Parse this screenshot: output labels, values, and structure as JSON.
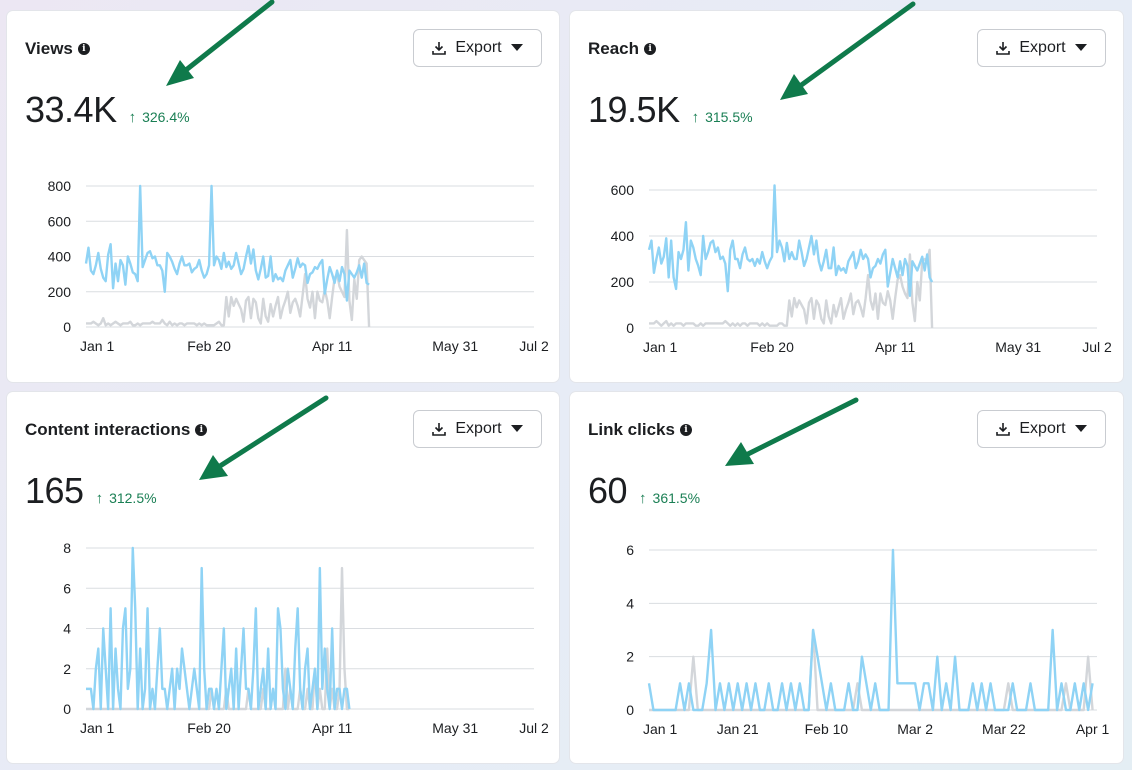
{
  "colors": {
    "current_series": "#8fd3f5",
    "previous_series": "#d3d6da",
    "gridline": "#dadde1",
    "change_up": "#1a7f54",
    "annotation_arrow": "#0f7a4b"
  },
  "icons": {
    "info": "info-icon",
    "export": "download-icon",
    "dropdown": "caret-down-icon",
    "change": "arrow-up-icon"
  },
  "cards": [
    {
      "title": "Views",
      "value": "33.4K",
      "change": "326.4%",
      "export_label": "Export"
    },
    {
      "title": "Reach",
      "value": "19.5K",
      "change": "315.5%",
      "export_label": "Export"
    },
    {
      "title": "Content interactions",
      "value": "165",
      "change": "312.5%",
      "export_label": "Export"
    },
    {
      "title": "Link clicks",
      "value": "60",
      "change": "361.5%",
      "export_label": "Export"
    }
  ],
  "chart_data": [
    {
      "type": "line",
      "title": "Views",
      "xlabel": "",
      "ylabel": "",
      "x_tick_labels": [
        "Jan 1",
        "Feb 20",
        "Apr 11",
        "May 31",
        "Jul 2"
      ],
      "x_tick_days": [
        0,
        50,
        100,
        150,
        182
      ],
      "xlim": [
        0,
        182
      ],
      "y_ticks": [
        0,
        200,
        400,
        600,
        800
      ],
      "ylim": [
        0,
        800
      ],
      "grid": true,
      "legend": "none",
      "series": [
        {
          "role": "current",
          "color": "#8fd3f5",
          "values": [
            360,
            450,
            320,
            300,
            350,
            420,
            330,
            280,
            260,
            410,
            470,
            220,
            360,
            260,
            380,
            350,
            240,
            400,
            360,
            310,
            300,
            260,
            800,
            340,
            380,
            420,
            430,
            390,
            400,
            350,
            350,
            320,
            200,
            420,
            400,
            370,
            330,
            300,
            360,
            400,
            350,
            350,
            360,
            310,
            330,
            340,
            380,
            320,
            280,
            300,
            350,
            800,
            350,
            400,
            380,
            330,
            420,
            340,
            370,
            330,
            350,
            420,
            360,
            300,
            330,
            400,
            460,
            360,
            440,
            320,
            270,
            330,
            400,
            280,
            290,
            400,
            260,
            300,
            270,
            280,
            260,
            320,
            350,
            380,
            280,
            330,
            390,
            340,
            360,
            350,
            250,
            300,
            310,
            340,
            330,
            360,
            380,
            190,
            270,
            340,
            300,
            250,
            320,
            260,
            340,
            300,
            150,
            320,
            300,
            280,
            310,
            350,
            280,
            360,
            250,
            240
          ]
        },
        {
          "role": "previous",
          "color": "#d3d6da",
          "values": [
            20,
            20,
            20,
            30,
            20,
            10,
            20,
            50,
            10,
            20,
            10,
            20,
            30,
            20,
            10,
            20,
            20,
            20,
            30,
            10,
            10,
            20,
            10,
            20,
            20,
            20,
            20,
            30,
            20,
            20,
            20,
            40,
            20,
            10,
            30,
            10,
            20,
            10,
            20,
            20,
            10,
            20,
            20,
            20,
            20,
            10,
            20,
            10,
            20,
            10,
            10,
            10,
            10,
            20,
            30,
            10,
            10,
            170,
            60,
            170,
            120,
            160,
            130,
            100,
            30,
            150,
            170,
            50,
            160,
            140,
            50,
            20,
            160,
            60,
            30,
            130,
            60,
            120,
            170,
            50,
            110,
            150,
            200,
            80,
            140,
            160,
            120,
            60,
            180,
            300,
            160,
            110,
            200,
            50,
            200,
            150,
            140,
            210,
            150,
            50,
            170,
            280,
            300,
            230,
            200,
            170,
            550,
            150,
            40,
            270,
            160,
            380,
            400,
            380,
            360,
            0
          ]
        }
      ]
    },
    {
      "type": "line",
      "title": "Reach",
      "xlabel": "",
      "ylabel": "",
      "x_tick_labels": [
        "Jan 1",
        "Feb 20",
        "Apr 11",
        "May 31",
        "Jul 2"
      ],
      "x_tick_days": [
        0,
        50,
        100,
        150,
        182
      ],
      "xlim": [
        0,
        182
      ],
      "y_ticks": [
        0,
        200,
        400,
        600
      ],
      "ylim": [
        0,
        600
      ],
      "grid": true,
      "legend": "none",
      "series": [
        {
          "role": "current",
          "color": "#8fd3f5",
          "values": [
            340,
            380,
            240,
            300,
            350,
            280,
            310,
            390,
            220,
            380,
            220,
            170,
            330,
            300,
            340,
            460,
            250,
            380,
            350,
            300,
            270,
            230,
            400,
            300,
            330,
            370,
            380,
            330,
            350,
            300,
            310,
            280,
            160,
            340,
            380,
            300,
            300,
            260,
            320,
            350,
            300,
            290,
            300,
            270,
            300,
            280,
            330,
            290,
            260,
            290,
            310,
            620,
            330,
            380,
            350,
            290,
            370,
            300,
            330,
            300,
            300,
            380,
            330,
            270,
            300,
            350,
            400,
            320,
            380,
            290,
            250,
            290,
            340,
            260,
            260,
            350,
            230,
            270,
            250,
            260,
            240,
            290,
            310,
            330,
            260,
            290,
            340,
            300,
            320,
            300,
            220,
            260,
            270,
            300,
            280,
            320,
            340,
            180,
            240,
            300,
            260,
            220,
            290,
            230,
            300,
            270,
            140,
            290,
            270,
            250,
            280,
            310,
            250,
            320,
            220,
            200
          ]
        },
        {
          "role": "previous",
          "color": "#d3d6da",
          "values": [
            20,
            20,
            20,
            30,
            20,
            10,
            20,
            30,
            10,
            20,
            10,
            20,
            20,
            20,
            10,
            20,
            20,
            20,
            20,
            10,
            10,
            20,
            10,
            20,
            20,
            20,
            20,
            20,
            20,
            20,
            20,
            30,
            20,
            10,
            20,
            10,
            20,
            10,
            20,
            20,
            10,
            20,
            20,
            20,
            20,
            10,
            20,
            10,
            20,
            10,
            10,
            10,
            10,
            20,
            20,
            10,
            10,
            120,
            50,
            130,
            90,
            120,
            100,
            80,
            20,
            110,
            130,
            40,
            120,
            100,
            40,
            20,
            120,
            50,
            20,
            100,
            50,
            90,
            130,
            40,
            80,
            110,
            150,
            60,
            110,
            120,
            90,
            50,
            130,
            230,
            120,
            80,
            150,
            40,
            150,
            110,
            100,
            160,
            120,
            40,
            130,
            210,
            230,
            180,
            150,
            130,
            320,
            110,
            30,
            200,
            120,
            290,
            300,
            290,
            340,
            0
          ]
        }
      ]
    },
    {
      "type": "line",
      "title": "Content interactions",
      "xlabel": "",
      "ylabel": "",
      "x_tick_labels": [
        "Jan 1",
        "Feb 20",
        "Apr 11",
        "May 31",
        "Jul 2"
      ],
      "x_tick_days": [
        0,
        50,
        100,
        150,
        182
      ],
      "xlim": [
        0,
        182
      ],
      "y_ticks": [
        0,
        2,
        4,
        6,
        8
      ],
      "ylim": [
        0,
        8
      ],
      "grid": true,
      "legend": "none",
      "series": [
        {
          "role": "current",
          "color": "#8fd3f5",
          "values": [
            1,
            1,
            1,
            0,
            2,
            3,
            0,
            4,
            2,
            0,
            5,
            0,
            3,
            1,
            0,
            4,
            5,
            1,
            2,
            8,
            5,
            0,
            3,
            0,
            1,
            5,
            0,
            1,
            0,
            2,
            4,
            1,
            1,
            0,
            1,
            2,
            0,
            2,
            1,
            3,
            2,
            1,
            0,
            1,
            2,
            1,
            0,
            7,
            2,
            0,
            1,
            1,
            0,
            1,
            0,
            2,
            4,
            0,
            1,
            2,
            0,
            3,
            0,
            2,
            4,
            1,
            1,
            0,
            2,
            5,
            0,
            1,
            2,
            0,
            3,
            0,
            1,
            0,
            5,
            4,
            1,
            0,
            2,
            1,
            0,
            3,
            5,
            1,
            0,
            2,
            3,
            0,
            1,
            2,
            0,
            7,
            1,
            3,
            1,
            0,
            4,
            0,
            1,
            1,
            0,
            1,
            1,
            0
          ]
        },
        {
          "role": "previous",
          "color": "#d3d6da",
          "values": [
            0,
            0,
            0,
            0,
            0,
            0,
            0,
            0,
            0,
            0,
            0,
            0,
            0,
            0,
            0,
            0,
            0,
            0,
            0,
            0,
            0,
            0,
            0,
            0,
            0,
            0,
            0,
            0,
            0,
            0,
            0,
            0,
            0,
            0,
            0,
            0,
            0,
            0,
            0,
            0,
            0,
            0,
            0,
            0,
            0,
            0,
            0,
            0,
            0,
            0,
            0,
            1,
            0,
            0,
            0,
            0,
            0,
            1,
            0,
            0,
            0,
            0,
            0,
            0,
            0,
            0,
            1,
            0,
            0,
            0,
            0,
            0,
            1,
            0,
            0,
            0,
            1,
            0,
            0,
            0,
            0,
            2,
            0,
            1,
            0,
            0,
            0,
            1,
            0,
            0,
            1,
            0,
            0,
            2,
            0,
            1,
            0,
            0,
            3,
            0,
            1,
            0,
            0,
            1,
            7,
            2,
            0,
            0
          ]
        }
      ]
    },
    {
      "type": "line",
      "title": "Link clicks",
      "xlabel": "",
      "ylabel": "",
      "x_tick_labels": [
        "Jan 1",
        "Jan 21",
        "Feb 10",
        "Mar 2",
        "Mar 22",
        "Apr 1"
      ],
      "x_tick_days": [
        0,
        20,
        40,
        60,
        80,
        100
      ],
      "xlim": [
        0,
        101
      ],
      "y_ticks": [
        0,
        2,
        4,
        6
      ],
      "ylim": [
        0,
        6
      ],
      "grid": true,
      "legend": "none",
      "series": [
        {
          "role": "current",
          "color": "#8fd3f5",
          "values": [
            1,
            0,
            0,
            0,
            0,
            0,
            0,
            1,
            0,
            1,
            0,
            0,
            0,
            1,
            3,
            0,
            1,
            0,
            1,
            0,
            1,
            0,
            1,
            0,
            1,
            0,
            0,
            1,
            0,
            0,
            1,
            0,
            1,
            0,
            1,
            0,
            0,
            3,
            2,
            1,
            0,
            1,
            0,
            0,
            0,
            1,
            0,
            0,
            2,
            1,
            0,
            1,
            0,
            0,
            0,
            6,
            1,
            1,
            1,
            1,
            1,
            0,
            1,
            1,
            0,
            2,
            0,
            1,
            0,
            2,
            0,
            0,
            0,
            1,
            0,
            1,
            0,
            1,
            0,
            0,
            0,
            0,
            1,
            0,
            0,
            0,
            1,
            0,
            0,
            0,
            0,
            3,
            0,
            1,
            0,
            0,
            1,
            0,
            1,
            0,
            1
          ]
        },
        {
          "role": "previous",
          "color": "#d3d6da",
          "values": [
            0,
            0,
            0,
            0,
            0,
            0,
            0,
            0,
            0,
            0,
            2,
            0,
            0,
            0,
            0,
            0,
            0,
            0,
            0,
            0,
            0,
            0,
            0,
            0,
            0,
            0,
            0,
            0,
            0,
            0,
            0,
            0,
            0,
            0,
            0,
            0,
            0,
            3,
            0,
            0,
            0,
            0,
            0,
            0,
            0,
            0,
            0,
            1,
            0,
            0,
            0,
            0,
            0,
            0,
            0,
            0,
            0,
            0,
            0,
            0,
            0,
            0,
            0,
            0,
            0,
            0,
            0,
            0,
            0,
            0,
            0,
            0,
            0,
            0,
            0,
            0,
            0,
            0,
            0,
            0,
            0,
            1,
            0,
            0,
            0,
            0,
            0,
            0,
            0,
            0,
            0,
            0,
            0,
            0,
            1,
            0,
            0,
            0,
            0,
            2,
            0
          ]
        }
      ]
    }
  ]
}
